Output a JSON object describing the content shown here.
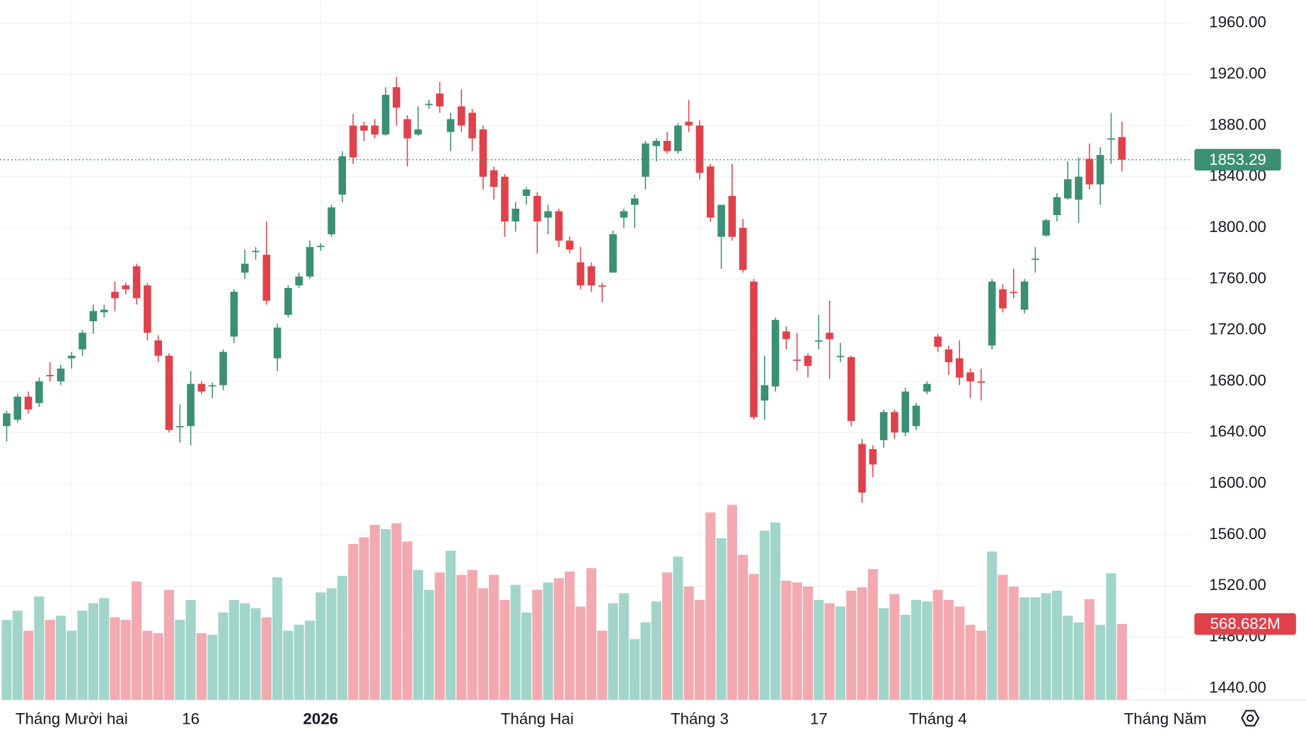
{
  "chart_data": {
    "type": "candlestick",
    "categories": [
      null,
      null,
      null,
      null,
      null,
      null,
      "Tháng Mười hai",
      null,
      null,
      null,
      null,
      null,
      null,
      null,
      null,
      null,
      null,
      "16",
      null,
      null,
      null,
      null,
      null,
      null,
      null,
      null,
      null,
      null,
      null,
      "2026",
      null,
      null,
      null,
      null,
      null,
      null,
      null,
      null,
      null,
      null,
      null,
      null,
      null,
      null,
      null,
      null,
      null,
      null,
      null,
      "Tháng Hai",
      null,
      null,
      null,
      null,
      null,
      null,
      null,
      null,
      null,
      null,
      null,
      null,
      null,
      null,
      "Tháng 3",
      null,
      null,
      null,
      null,
      null,
      null,
      null,
      null,
      null,
      null,
      "17",
      null,
      null,
      null,
      null,
      null,
      null,
      null,
      null,
      null,
      null,
      "Tháng 4",
      null,
      null,
      null,
      null,
      null,
      null,
      null,
      null,
      null,
      null,
      null,
      null,
      null,
      null,
      null,
      null,
      null
    ],
    "next_period_label": "Tháng Năm",
    "open": [
      1645,
      1650,
      1668,
      1663,
      1685,
      1680,
      1698,
      1705,
      1727,
      1734,
      1750,
      1755,
      1770,
      1755,
      1712,
      1700,
      1645,
      1645,
      1678,
      1676,
      1677,
      1715,
      1765,
      1782,
      1779,
      1698,
      1732,
      1755,
      1762,
      1785,
      1795,
      1826,
      1880,
      1880,
      1880,
      1873,
      1910,
      1885,
      1873,
      1896,
      1905,
      1875,
      1895,
      1890,
      1877,
      1845,
      1840,
      1805,
      1825,
      1825,
      1808,
      1813,
      1790,
      1773,
      1770,
      1755,
      1765,
      1808,
      1818,
      1840,
      1864,
      1868,
      1860,
      1883,
      1880,
      1848,
      1793,
      1825,
      1800,
      1758,
      1665,
      1676,
      1719,
      1697,
      1700,
      1712,
      1718,
      1700,
      1699,
      1631,
      1627,
      1634,
      1656,
      1640,
      1645,
      1672,
      1715,
      1705,
      1698,
      1687,
      1680,
      1708,
      1752,
      1750,
      1736,
      1775,
      1794,
      1810,
      1823,
      1822,
      1854,
      1834,
      1869,
      1871
    ],
    "high": [
      1657,
      1670,
      1672,
      1683,
      1695,
      1693,
      1703,
      1720,
      1740,
      1740,
      1758,
      1757,
      1772,
      1757,
      1716,
      1702,
      1662,
      1688,
      1680,
      1679,
      1705,
      1752,
      1783,
      1785,
      1805,
      1725,
      1755,
      1765,
      1790,
      1788,
      1818,
      1860,
      1889,
      1883,
      1885,
      1910,
      1918,
      1888,
      1895,
      1900,
      1914,
      1890,
      1908,
      1893,
      1880,
      1848,
      1842,
      1820,
      1832,
      1828,
      1818,
      1815,
      1793,
      1785,
      1773,
      1757,
      1798,
      1815,
      1826,
      1868,
      1870,
      1875,
      1882,
      1900,
      1884,
      1850,
      1818,
      1850,
      1807,
      1760,
      1700,
      1730,
      1723,
      1718,
      1702,
      1732,
      1743,
      1710,
      1700,
      1635,
      1630,
      1658,
      1658,
      1675,
      1663,
      1680,
      1717,
      1708,
      1712,
      1690,
      1690,
      1760,
      1756,
      1768,
      1760,
      1785,
      1807,
      1827,
      1852,
      1855,
      1866,
      1863,
      1890,
      1883
    ],
    "low": [
      1633,
      1648,
      1655,
      1660,
      1680,
      1677,
      1690,
      1700,
      1717,
      1730,
      1735,
      1748,
      1740,
      1712,
      1695,
      1640,
      1632,
      1630,
      1670,
      1667,
      1673,
      1710,
      1760,
      1775,
      1740,
      1688,
      1730,
      1753,
      1760,
      1782,
      1793,
      1820,
      1850,
      1868,
      1870,
      1872,
      1880,
      1848,
      1872,
      1893,
      1890,
      1860,
      1875,
      1860,
      1830,
      1822,
      1793,
      1797,
      1818,
      1780,
      1795,
      1785,
      1780,
      1752,
      1750,
      1742,
      1765,
      1800,
      1800,
      1830,
      1852,
      1858,
      1858,
      1875,
      1838,
      1805,
      1768,
      1790,
      1765,
      1650,
      1650,
      1672,
      1705,
      1688,
      1683,
      1705,
      1682,
      1695,
      1645,
      1585,
      1605,
      1628,
      1635,
      1637,
      1642,
      1670,
      1703,
      1685,
      1677,
      1667,
      1665,
      1705,
      1734,
      1745,
      1733,
      1765,
      1793,
      1805,
      1822,
      1804,
      1830,
      1818,
      1850,
      1844
    ],
    "close": [
      1655,
      1668,
      1658,
      1680,
      1684,
      1690,
      1700,
      1718,
      1735,
      1736,
      1745,
      1752,
      1745,
      1718,
      1700,
      1642,
      1645,
      1678,
      1672,
      1677,
      1703,
      1750,
      1772,
      1782,
      1743,
      1722,
      1753,
      1762,
      1785,
      1786,
      1816,
      1856,
      1855,
      1876,
      1873,
      1904,
      1894,
      1870,
      1877,
      1897,
      1895,
      1885,
      1880,
      1870,
      1840,
      1832,
      1805,
      1815,
      1830,
      1805,
      1813,
      1790,
      1783,
      1755,
      1755,
      1754,
      1795,
      1813,
      1823,
      1866,
      1868,
      1860,
      1880,
      1880,
      1843,
      1808,
      1818,
      1793,
      1767,
      1652,
      1677,
      1728,
      1713,
      1696,
      1692,
      1712,
      1713,
      1700,
      1649,
      1593,
      1615,
      1656,
      1640,
      1672,
      1661,
      1678,
      1707,
      1695,
      1683,
      1680,
      1679,
      1758,
      1737,
      1749,
      1758,
      1776,
      1806,
      1824,
      1838,
      1840,
      1834,
      1857,
      1870,
      1853.29
    ],
    "volume": [
      600,
      669,
      519,
      775,
      600,
      631,
      519,
      669,
      725,
      763,
      619,
      600,
      888,
      519,
      500,
      825,
      600,
      750,
      500,
      488,
      656,
      750,
      725,
      688,
      619,
      919,
      519,
      563,
      594,
      806,
      838,
      931,
      1169,
      1219,
      1313,
      1281,
      1325,
      1188,
      975,
      825,
      956,
      1119,
      938,
      975,
      838,
      938,
      750,
      863,
      656,
      825,
      881,
      913,
      963,
      700,
      988,
      519,
      725,
      800,
      456,
      581,
      738,
      956,
      1075,
      850,
      750,
      1406,
      1213,
      1463,
      1088,
      944,
      1269,
      1331,
      894,
      881,
      850,
      750,
      725,
      700,
      819,
      844,
      981,
      688,
      794,
      638,
      750,
      738,
      825,
      750,
      700,
      563,
      519,
      1113,
      938,
      850,
      769,
      769,
      800,
      819,
      631,
      581,
      756,
      563,
      950,
      568.682
    ],
    "volume_value_label": "568.682M",
    "ylim": [
      1431,
      1978
    ],
    "yticks": [
      {
        "value": 1440,
        "label": "1440.00"
      },
      {
        "value": 1480,
        "label": "1480.00"
      },
      {
        "value": 1520,
        "label": "1520.00"
      },
      {
        "value": 1560,
        "label": "1560.00"
      },
      {
        "value": 1600,
        "label": "1600.00"
      },
      {
        "value": 1640,
        "label": "1640.00"
      },
      {
        "value": 1680,
        "label": "1680.00"
      },
      {
        "value": 1720,
        "label": "1720.00"
      },
      {
        "value": 1760,
        "label": "1760.00"
      },
      {
        "value": 1800,
        "label": "1800.00"
      },
      {
        "value": 1840,
        "label": "1840.00"
      },
      {
        "value": 1880,
        "label": "1880.00"
      },
      {
        "value": 1920,
        "label": "1920.00"
      },
      {
        "value": 1960,
        "label": "1960.00"
      }
    ],
    "volume_lim": [
      0,
      5250
    ],
    "grid": true,
    "up_color": "#3b8f74",
    "down_color": "#e0424b",
    "volume_up_color": "#a2d5ca",
    "volume_down_color": "#f2aab0"
  }
}
